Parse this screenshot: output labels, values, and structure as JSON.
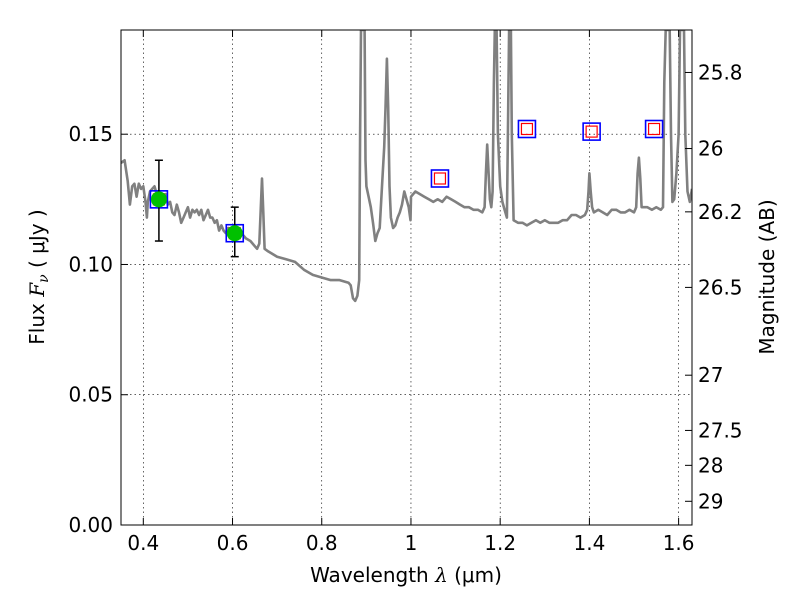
{
  "chart_data": {
    "type": "scatter",
    "xlabel_prefix": "Wavelength",
    "xlabel_symbol": "λ",
    "xlabel_unit": "(μm)",
    "ylabel_prefix": "Flux",
    "ylabel_symbol": "F",
    "ylabel_subscript": "ν",
    "ylabel_unit": "( μJy )",
    "y2label": "Magnitude (AB)",
    "xlim": [
      0.35,
      1.63
    ],
    "ylim": [
      0.0,
      0.19
    ],
    "grid": true,
    "x_ticks": [
      0.4,
      0.6,
      0.8,
      1.0,
      1.2,
      1.4,
      1.6
    ],
    "x_tick_labels": [
      "0.4",
      "0.6",
      "0.8",
      "1",
      "1.2",
      "1.4",
      "1.6"
    ],
    "y_ticks": [
      0.0,
      0.05,
      0.1,
      0.15
    ],
    "y_tick_labels": [
      "0.00",
      "0.05",
      "0.10",
      "0.15"
    ],
    "y2_ticks": [
      {
        "label": "25.8",
        "flux": 0.1737
      },
      {
        "label": "26",
        "flux": 0.1445
      },
      {
        "label": "26.2",
        "flux": 0.1202
      },
      {
        "label": "26.5",
        "flux": 0.0912
      },
      {
        "label": "27",
        "flux": 0.0575
      },
      {
        "label": "27.5",
        "flux": 0.0363
      },
      {
        "label": "28",
        "flux": 0.0229
      },
      {
        "label": "29",
        "flux": 0.0091
      }
    ],
    "series": [
      {
        "kind": "model_spectrum",
        "color": "#808080",
        "points": [
          [
            0.35,
            0.139
          ],
          [
            0.358,
            0.14
          ],
          [
            0.365,
            0.132
          ],
          [
            0.37,
            0.123
          ],
          [
            0.375,
            0.13
          ],
          [
            0.38,
            0.131
          ],
          [
            0.385,
            0.126
          ],
          [
            0.39,
            0.131
          ],
          [
            0.395,
            0.129
          ],
          [
            0.4,
            0.13
          ],
          [
            0.405,
            0.124
          ],
          [
            0.408,
            0.118
          ],
          [
            0.41,
            0.124
          ],
          [
            0.415,
            0.128
          ],
          [
            0.42,
            0.129
          ],
          [
            0.425,
            0.13
          ],
          [
            0.43,
            0.127
          ],
          [
            0.435,
            0.128
          ],
          [
            0.44,
            0.126
          ],
          [
            0.445,
            0.125
          ],
          [
            0.45,
            0.127
          ],
          [
            0.455,
            0.123
          ],
          [
            0.46,
            0.124
          ],
          [
            0.465,
            0.12
          ],
          [
            0.47,
            0.119
          ],
          [
            0.475,
            0.123
          ],
          [
            0.48,
            0.12
          ],
          [
            0.485,
            0.116
          ],
          [
            0.49,
            0.118
          ],
          [
            0.495,
            0.12
          ],
          [
            0.5,
            0.122
          ],
          [
            0.505,
            0.118
          ],
          [
            0.51,
            0.121
          ],
          [
            0.515,
            0.12
          ],
          [
            0.52,
            0.121
          ],
          [
            0.525,
            0.119
          ],
          [
            0.53,
            0.121
          ],
          [
            0.535,
            0.117
          ],
          [
            0.54,
            0.119
          ],
          [
            0.545,
            0.121
          ],
          [
            0.55,
            0.118
          ],
          [
            0.555,
            0.118
          ],
          [
            0.56,
            0.116
          ],
          [
            0.565,
            0.117
          ],
          [
            0.57,
            0.113
          ],
          [
            0.575,
            0.115
          ],
          [
            0.58,
            0.113
          ],
          [
            0.585,
            0.112
          ],
          [
            0.59,
            0.114
          ],
          [
            0.595,
            0.112
          ],
          [
            0.6,
            0.114
          ],
          [
            0.61,
            0.113
          ],
          [
            0.62,
            0.112
          ],
          [
            0.63,
            0.11
          ],
          [
            0.64,
            0.109
          ],
          [
            0.65,
            0.107
          ],
          [
            0.655,
            0.106
          ],
          [
            0.66,
            0.108
          ],
          [
            0.663,
            0.12
          ],
          [
            0.666,
            0.133
          ],
          [
            0.669,
            0.12
          ],
          [
            0.672,
            0.106
          ],
          [
            0.68,
            0.105
          ],
          [
            0.7,
            0.103
          ],
          [
            0.72,
            0.102
          ],
          [
            0.74,
            0.101
          ],
          [
            0.76,
            0.098
          ],
          [
            0.78,
            0.096
          ],
          [
            0.8,
            0.095
          ],
          [
            0.82,
            0.094
          ],
          [
            0.84,
            0.094
          ],
          [
            0.86,
            0.093
          ],
          [
            0.865,
            0.092
          ],
          [
            0.87,
            0.087
          ],
          [
            0.875,
            0.086
          ],
          [
            0.88,
            0.088
          ],
          [
            0.884,
            0.094
          ],
          [
            0.886,
            0.15
          ],
          [
            0.888,
            0.19
          ],
          [
            0.896,
            0.19
          ],
          [
            0.898,
            0.14
          ],
          [
            0.9,
            0.13
          ],
          [
            0.905,
            0.126
          ],
          [
            0.91,
            0.122
          ],
          [
            0.915,
            0.116
          ],
          [
            0.92,
            0.109
          ],
          [
            0.925,
            0.112
          ],
          [
            0.93,
            0.114
          ],
          [
            0.935,
            0.13
          ],
          [
            0.94,
            0.145
          ],
          [
            0.943,
            0.16
          ],
          [
            0.946,
            0.179
          ],
          [
            0.949,
            0.16
          ],
          [
            0.952,
            0.13
          ],
          [
            0.955,
            0.118
          ],
          [
            0.96,
            0.114
          ],
          [
            0.965,
            0.115
          ],
          [
            0.97,
            0.118
          ],
          [
            0.975,
            0.12
          ],
          [
            0.98,
            0.123
          ],
          [
            0.985,
            0.128
          ],
          [
            0.99,
            0.125
          ],
          [
            0.995,
            0.122
          ],
          [
            0.999,
            0.117
          ],
          [
            1.0,
            0.126
          ],
          [
            1.01,
            0.128
          ],
          [
            1.02,
            0.127
          ],
          [
            1.03,
            0.126
          ],
          [
            1.04,
            0.125
          ],
          [
            1.05,
            0.124
          ],
          [
            1.06,
            0.125
          ],
          [
            1.07,
            0.124
          ],
          [
            1.08,
            0.126
          ],
          [
            1.09,
            0.125
          ],
          [
            1.1,
            0.124
          ],
          [
            1.11,
            0.123
          ],
          [
            1.12,
            0.122
          ],
          [
            1.13,
            0.122
          ],
          [
            1.14,
            0.121
          ],
          [
            1.15,
            0.121
          ],
          [
            1.16,
            0.12
          ],
          [
            1.165,
            0.122
          ],
          [
            1.168,
            0.135
          ],
          [
            1.171,
            0.146
          ],
          [
            1.174,
            0.135
          ],
          [
            1.177,
            0.125
          ],
          [
            1.18,
            0.122
          ],
          [
            1.183,
            0.128
          ],
          [
            1.186,
            0.17
          ],
          [
            1.188,
            0.19
          ],
          [
            1.192,
            0.19
          ],
          [
            1.195,
            0.15
          ],
          [
            1.2,
            0.13
          ],
          [
            1.205,
            0.124
          ],
          [
            1.21,
            0.121
          ],
          [
            1.215,
            0.118
          ],
          [
            1.218,
            0.16
          ],
          [
            1.22,
            0.19
          ],
          [
            1.224,
            0.19
          ],
          [
            1.226,
            0.15
          ],
          [
            1.23,
            0.117
          ],
          [
            1.24,
            0.116
          ],
          [
            1.25,
            0.116
          ],
          [
            1.26,
            0.115
          ],
          [
            1.27,
            0.116
          ],
          [
            1.28,
            0.117
          ],
          [
            1.29,
            0.116
          ],
          [
            1.3,
            0.117
          ],
          [
            1.31,
            0.116
          ],
          [
            1.32,
            0.116
          ],
          [
            1.33,
            0.116
          ],
          [
            1.34,
            0.117
          ],
          [
            1.35,
            0.117
          ],
          [
            1.36,
            0.119
          ],
          [
            1.37,
            0.119
          ],
          [
            1.38,
            0.118
          ],
          [
            1.39,
            0.119
          ],
          [
            1.395,
            0.121
          ],
          [
            1.398,
            0.128
          ],
          [
            1.4,
            0.135
          ],
          [
            1.403,
            0.128
          ],
          [
            1.406,
            0.122
          ],
          [
            1.41,
            0.12
          ],
          [
            1.42,
            0.121
          ],
          [
            1.43,
            0.12
          ],
          [
            1.44,
            0.119
          ],
          [
            1.45,
            0.121
          ],
          [
            1.46,
            0.121
          ],
          [
            1.47,
            0.12
          ],
          [
            1.48,
            0.12
          ],
          [
            1.49,
            0.121
          ],
          [
            1.5,
            0.12
          ],
          [
            1.505,
            0.122
          ],
          [
            1.508,
            0.135
          ],
          [
            1.511,
            0.141
          ],
          [
            1.514,
            0.133
          ],
          [
            1.517,
            0.122
          ],
          [
            1.52,
            0.122
          ],
          [
            1.53,
            0.122
          ],
          [
            1.54,
            0.121
          ],
          [
            1.55,
            0.122
          ],
          [
            1.56,
            0.121
          ],
          [
            1.565,
            0.122
          ],
          [
            1.568,
            0.17
          ],
          [
            1.571,
            0.19
          ],
          [
            1.58,
            0.19
          ],
          [
            1.583,
            0.15
          ],
          [
            1.586,
            0.124
          ],
          [
            1.59,
            0.125
          ],
          [
            1.595,
            0.135
          ],
          [
            1.6,
            0.15
          ],
          [
            1.603,
            0.19
          ],
          [
            1.612,
            0.19
          ],
          [
            1.615,
            0.15
          ],
          [
            1.62,
            0.128
          ],
          [
            1.625,
            0.124
          ],
          [
            1.63,
            0.129
          ]
        ]
      },
      {
        "kind": "model_photometry",
        "marker": "open_square",
        "colors": [
          "#0000ff",
          "#ff0000"
        ],
        "points": [
          [
            0.435,
            0.125
          ],
          [
            0.605,
            0.112
          ],
          [
            1.065,
            0.133
          ],
          [
            1.26,
            0.152
          ],
          [
            1.405,
            0.151
          ],
          [
            1.545,
            0.152
          ]
        ]
      },
      {
        "kind": "observed",
        "marker": "filled_circle",
        "color": "#00c000",
        "points": [
          {
            "x": 0.435,
            "y": 0.125,
            "ylo": 0.109,
            "yhi": 0.14
          },
          {
            "x": 0.605,
            "y": 0.112,
            "ylo": 0.103,
            "yhi": 0.122
          }
        ]
      }
    ]
  }
}
